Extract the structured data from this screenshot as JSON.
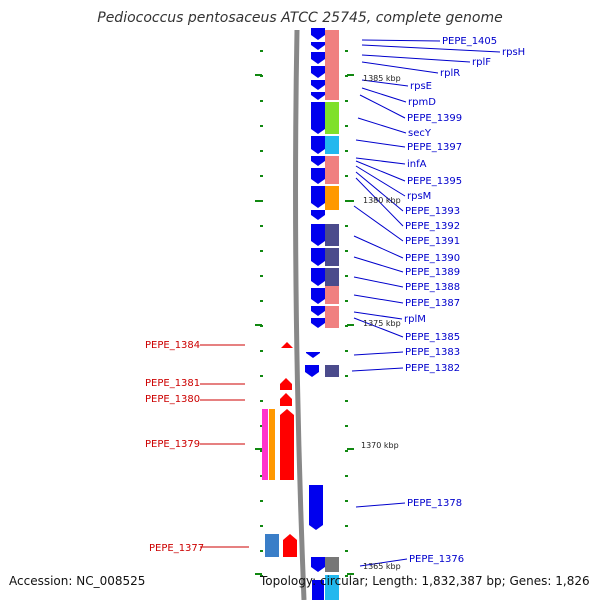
{
  "title": "Pediococcus pentosaceus ATCC 25745, complete genome",
  "footer": {
    "accession": "Accession: NC_008525",
    "summary": "Topology: circular; Length: 1,832,387 bp; Genes: 1,826"
  },
  "scale_labels": [
    "1385 kbp",
    "1380 kbp",
    "1375 kbp",
    "1370 kbp",
    "1365 kbp"
  ],
  "right_labels": [
    "PEPE_1405",
    "rpsH",
    "rplF",
    "rplR",
    "rpsE",
    "rpmD",
    "PEPE_1399",
    "secY",
    "PEPE_1397",
    "infA",
    "PEPE_1395",
    "rpsM",
    "PEPE_1393",
    "PEPE_1392",
    "PEPE_1391",
    "PEPE_1390",
    "PEPE_1389",
    "PEPE_1388",
    "PEPE_1387",
    "rplM",
    "PEPE_1385",
    "PEPE_1383",
    "PEPE_1382",
    "PEPE_1378",
    "PEPE_1376"
  ],
  "left_labels": [
    "PEPE_1384",
    "PEPE_1381",
    "PEPE_1380",
    "PEPE_1379",
    "PEPE_1377"
  ],
  "colors": {
    "forward_gene": "#ff0000",
    "reverse_gene": "#0000ee",
    "cog_salmon": "#f08080",
    "cog_green": "#7fe02a",
    "cog_cyan": "#22b8ee",
    "cog_orange": "#ff9900",
    "cog_slate": "#4b4b8c",
    "cog_magenta": "#ff33cc",
    "backbone": "#888888",
    "tick": "#118811",
    "right_label": "#0000cc",
    "left_label": "#cc0000"
  }
}
